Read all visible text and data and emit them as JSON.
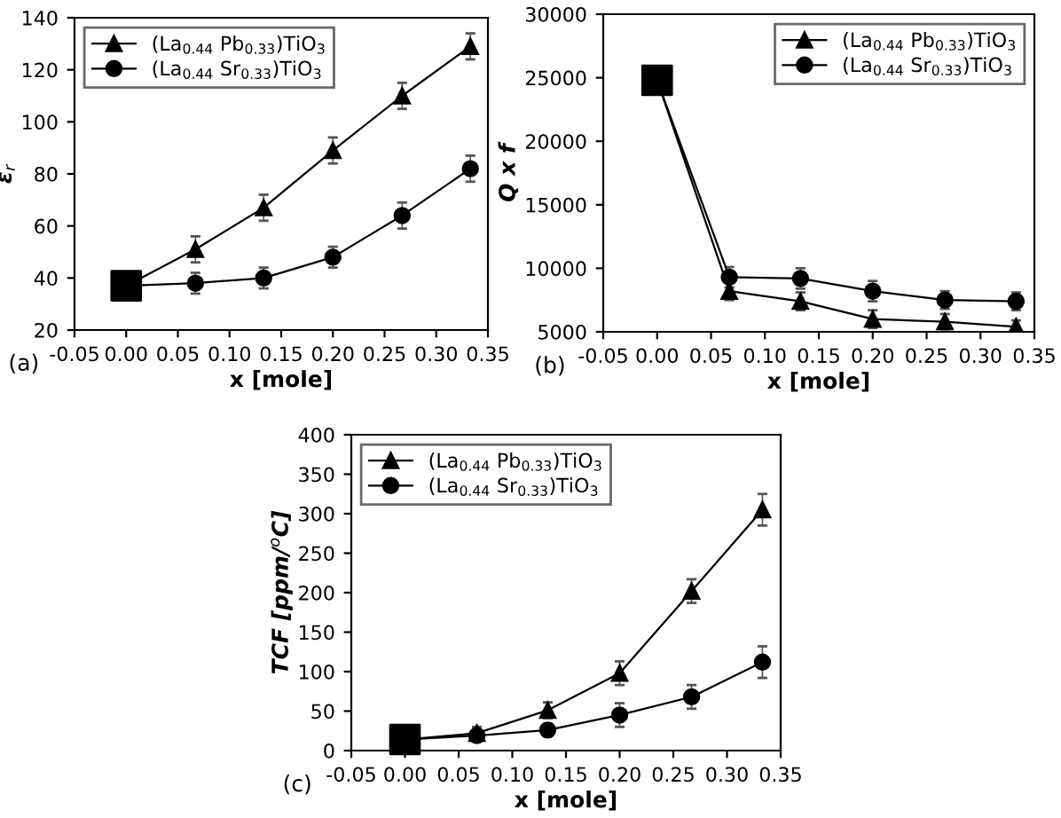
{
  "chart_data": [
    {
      "type": "line",
      "ylabel": "ε$_{r}$",
      "xlabel": "x [mole]",
      "annotations": [
        "(a)"
      ],
      "legend": "top left",
      "xlim": [
        -0.05,
        0.35
      ],
      "xticks": [
        {
          "value": -0.05,
          "label": "-0.05"
        },
        {
          "value": 0,
          "label": "0.00"
        },
        {
          "value": 0.05,
          "label": "0.05"
        },
        {
          "value": 0.1,
          "label": "0.10"
        },
        {
          "value": 0.15,
          "label": "0.15"
        },
        {
          "value": 0.2,
          "label": "0.20"
        },
        {
          "value": 0.25,
          "label": "0.25"
        },
        {
          "value": 0.3,
          "label": "0.30"
        },
        {
          "value": 0.35,
          "label": "0.35"
        }
      ],
      "ylim": [
        20,
        140
      ],
      "yticks": [
        20,
        40,
        60,
        80,
        100,
        120,
        140
      ],
      "x": [
        0,
        0.067,
        0.133,
        0.2,
        0.267,
        0.333
      ],
      "series": [
        {
          "name": "(La$_{0.44}$ Pb$_{0.33}$)TiO$_{3}$",
          "color": "#000000",
          "marker": "triangle",
          "values": [
            37,
            51,
            67,
            89,
            110,
            129
          ],
          "errors": [
            null,
            5,
            5,
            5,
            5,
            5
          ]
        },
        {
          "name": "(La$_{0.44}$ Sr$_{0.33}$)TiO$_{3}$",
          "color": "#000000",
          "marker": "circle",
          "values": [
            37,
            38,
            40,
            48,
            64,
            82
          ],
          "errors": [
            null,
            4,
            4,
            4,
            5,
            5
          ]
        },
        {
          "type": "scatter",
          "color": "#000000",
          "marker": "square",
          "values": [
            37,
            null,
            null,
            null,
            null,
            null
          ]
        }
      ]
    },
    {
      "type": "line",
      "ylabel": "Q x f",
      "xlabel": "x [mole]",
      "annotations": [
        "(b)"
      ],
      "legend": "top right",
      "xlim": [
        -0.05,
        0.35
      ],
      "xticks": [
        {
          "value": -0.05,
          "label": "-0.05"
        },
        {
          "value": 0,
          "label": "0.00"
        },
        {
          "value": 0.05,
          "label": "0.05"
        },
        {
          "value": 0.1,
          "label": "0.10"
        },
        {
          "value": 0.15,
          "label": "0.15"
        },
        {
          "value": 0.2,
          "label": "0.20"
        },
        {
          "value": 0.25,
          "label": "0.25"
        },
        {
          "value": 0.3,
          "label": "0.30"
        },
        {
          "value": 0.35,
          "label": "0.35"
        }
      ],
      "ylim": [
        5000,
        30000
      ],
      "yticks": [
        5000,
        10000,
        15000,
        20000,
        25000,
        30000
      ],
      "x": [
        0,
        0.067,
        0.133,
        0.2,
        0.267,
        0.333
      ],
      "series": [
        {
          "name": "(La$_{0.44}$ Pb$_{0.33}$)TiO$_{3}$",
          "color": "#000000",
          "marker": "triangle",
          "values": [
            24800,
            8200,
            7400,
            6000,
            5800,
            5400
          ],
          "errors": [
            null,
            700,
            700,
            700,
            600,
            500
          ]
        },
        {
          "name": "(La$_{0.44}$ Sr$_{0.33}$)TiO$_{3}$",
          "color": "#000000",
          "marker": "circle",
          "values": [
            24800,
            9300,
            9200,
            8200,
            7500,
            7400
          ],
          "errors": [
            null,
            800,
            800,
            800,
            700,
            700
          ]
        },
        {
          "type": "scatter",
          "color": "#000000",
          "marker": "square",
          "values": [
            24800,
            null,
            null,
            null,
            null,
            null
          ]
        }
      ]
    },
    {
      "type": "line",
      "ylabel": "TCF [ppm/$^{o}$C]",
      "xlabel": "x [mole]",
      "annotations": [
        "(c)"
      ],
      "legend": "top left",
      "xlim": [
        -0.05,
        0.35
      ],
      "xticks": [
        {
          "value": -0.05,
          "label": "-0.05"
        },
        {
          "value": 0,
          "label": "0.00"
        },
        {
          "value": 0.05,
          "label": "0.05"
        },
        {
          "value": 0.1,
          "label": "0.10"
        },
        {
          "value": 0.15,
          "label": "0.15"
        },
        {
          "value": 0.2,
          "label": "0.20"
        },
        {
          "value": 0.25,
          "label": "0.25"
        },
        {
          "value": 0.3,
          "label": "0.30"
        },
        {
          "value": 0.35,
          "label": "0.35"
        }
      ],
      "ylim": [
        0,
        400
      ],
      "yticks": [
        0,
        50,
        100,
        150,
        200,
        250,
        300,
        350,
        400
      ],
      "x": [
        0,
        0.067,
        0.133,
        0.2,
        0.267,
        0.333
      ],
      "series": [
        {
          "name": "(La$_{0.44}$ Pb$_{0.33}$)TiO$_{3}$",
          "color": "#000000",
          "marker": "triangle",
          "values": [
            14,
            22,
            51,
            98,
            202,
            305
          ],
          "errors": [
            null,
            8,
            10,
            15,
            15,
            20
          ]
        },
        {
          "name": "(La$_{0.44}$ Sr$_{0.33}$)TiO$_{3}$",
          "color": "#000000",
          "marker": "circle",
          "values": [
            14,
            19,
            26,
            45,
            68,
            112
          ],
          "errors": [
            null,
            5,
            8,
            15,
            15,
            20
          ]
        },
        {
          "type": "scatter",
          "color": "#000000",
          "marker": "square",
          "values": [
            14,
            null,
            null,
            null,
            null,
            null
          ]
        }
      ]
    }
  ]
}
